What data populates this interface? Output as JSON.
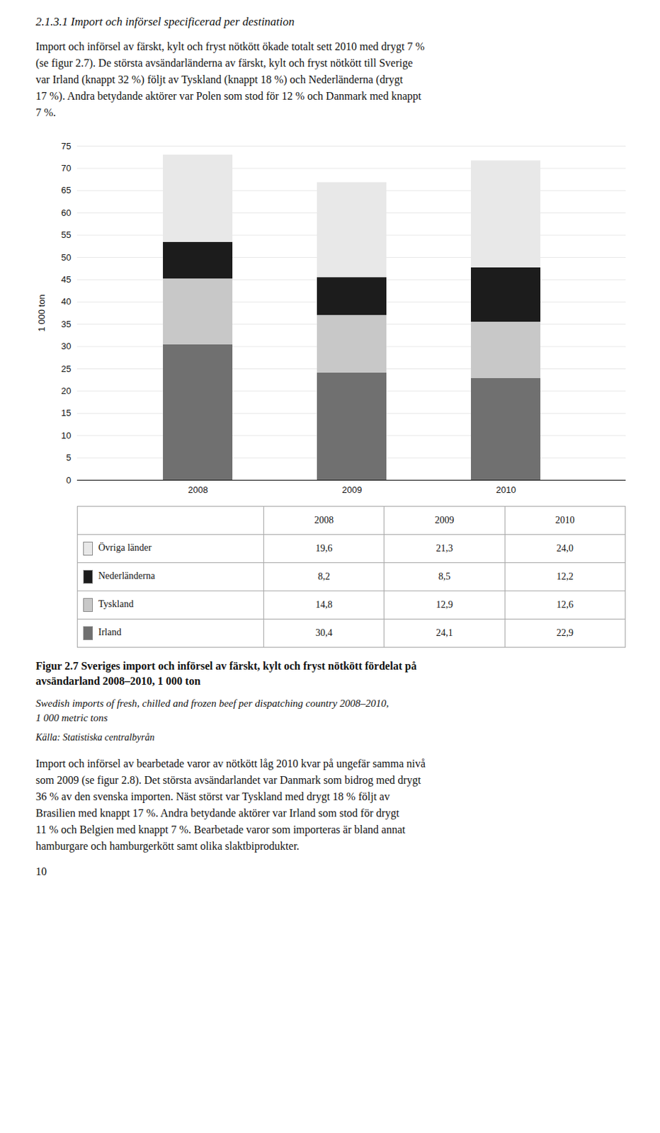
{
  "page": {
    "heading": "2.1.3.1  Import och införsel specificerad per destination",
    "text_above": "Import och införsel av färskt, kylt och fryst nötkött ökade totalt sett 2010 med drygt 7 %\n(se figur 2.7). De största avsändarländerna av färskt, kylt och fryst nötkött till Sverige\nvar Irland (knappt 32 %) följt av Tyskland (knappt 18 %) och Nederländerna (drygt\n17 %). Andra betydande aktörer var Polen som stod för 12 % och Danmark med knappt\n7 %.",
    "text_below": "Import och införsel av bearbetade varor av nötkött låg 2010 kvar på ungefär samma nivå\nsom 2009 (se figur 2.8). Det största avsändarlandet var Danmark som bidrog med drygt\n36 % av den svenska importen. Näst störst var Tyskland med drygt 18 % följt av\nBrasilien med knappt 17 %. Andra betydande aktörer var Irland som stod för drygt\n11 % och Belgien med knappt 7 %. Bearbetade varor som importeras är bland annat\nhamburgare och hamburgerkött samt olika slaktbiprodukter.",
    "page_number": "10"
  },
  "chart_data": {
    "type": "bar",
    "stacked": true,
    "title": "Figur 2.7 Sveriges import och införsel av färskt, kylt och fryst nötkött fördelat på\navsändarland 2008–2010, 1 000 ton",
    "subtitle": "Swedish imports of fresh, chilled and frozen beef per dispatching country 2008–2010,\n1 000 metric tons",
    "source": "Källa: Statistiska centralbyrån",
    "ylabel": "1 000 ton",
    "categories": [
      "2008",
      "2009",
      "2010"
    ],
    "series": [
      {
        "name": "Irland",
        "color": "#707070",
        "values": [
          30.4,
          24.1,
          22.9
        ]
      },
      {
        "name": "Tyskland",
        "color": "#c8c8c8",
        "values": [
          14.8,
          12.9,
          12.6
        ]
      },
      {
        "name": "Nederländerna",
        "color": "#1c1c1c",
        "values": [
          8.2,
          8.5,
          12.2
        ]
      },
      {
        "name": "Övriga länder",
        "color": "#e8e8e8",
        "values": [
          19.6,
          21.3,
          24.0
        ]
      }
    ],
    "ylim": [
      0,
      75
    ],
    "yticks": [
      0,
      5,
      10,
      15,
      20,
      25,
      30,
      35,
      40,
      45,
      50,
      55,
      60,
      65,
      70,
      75
    ],
    "grid": true,
    "table": {
      "columns": [
        "2008",
        "2009",
        "2010"
      ],
      "rows": [
        {
          "name": "Övriga länder",
          "color": "#e8e8e8",
          "values": [
            19.6,
            21.3,
            24.0
          ],
          "value_labels": [
            "19,6",
            "21,3",
            "24,0"
          ]
        },
        {
          "name": "Nederländerna",
          "color": "#1c1c1c",
          "values": [
            8.2,
            8.5,
            12.2
          ],
          "value_labels": [
            "8,2",
            "8,5",
            "12,2"
          ]
        },
        {
          "name": "Tyskland",
          "color": "#c8c8c8",
          "values": [
            14.8,
            12.9,
            12.6
          ],
          "value_labels": [
            "14,8",
            "12,9",
            "12,6"
          ]
        },
        {
          "name": "Irland",
          "color": "#707070",
          "values": [
            30.4,
            24.1,
            22.9
          ],
          "value_labels": [
            "30,4",
            "24,1",
            "22,9"
          ]
        }
      ]
    }
  }
}
